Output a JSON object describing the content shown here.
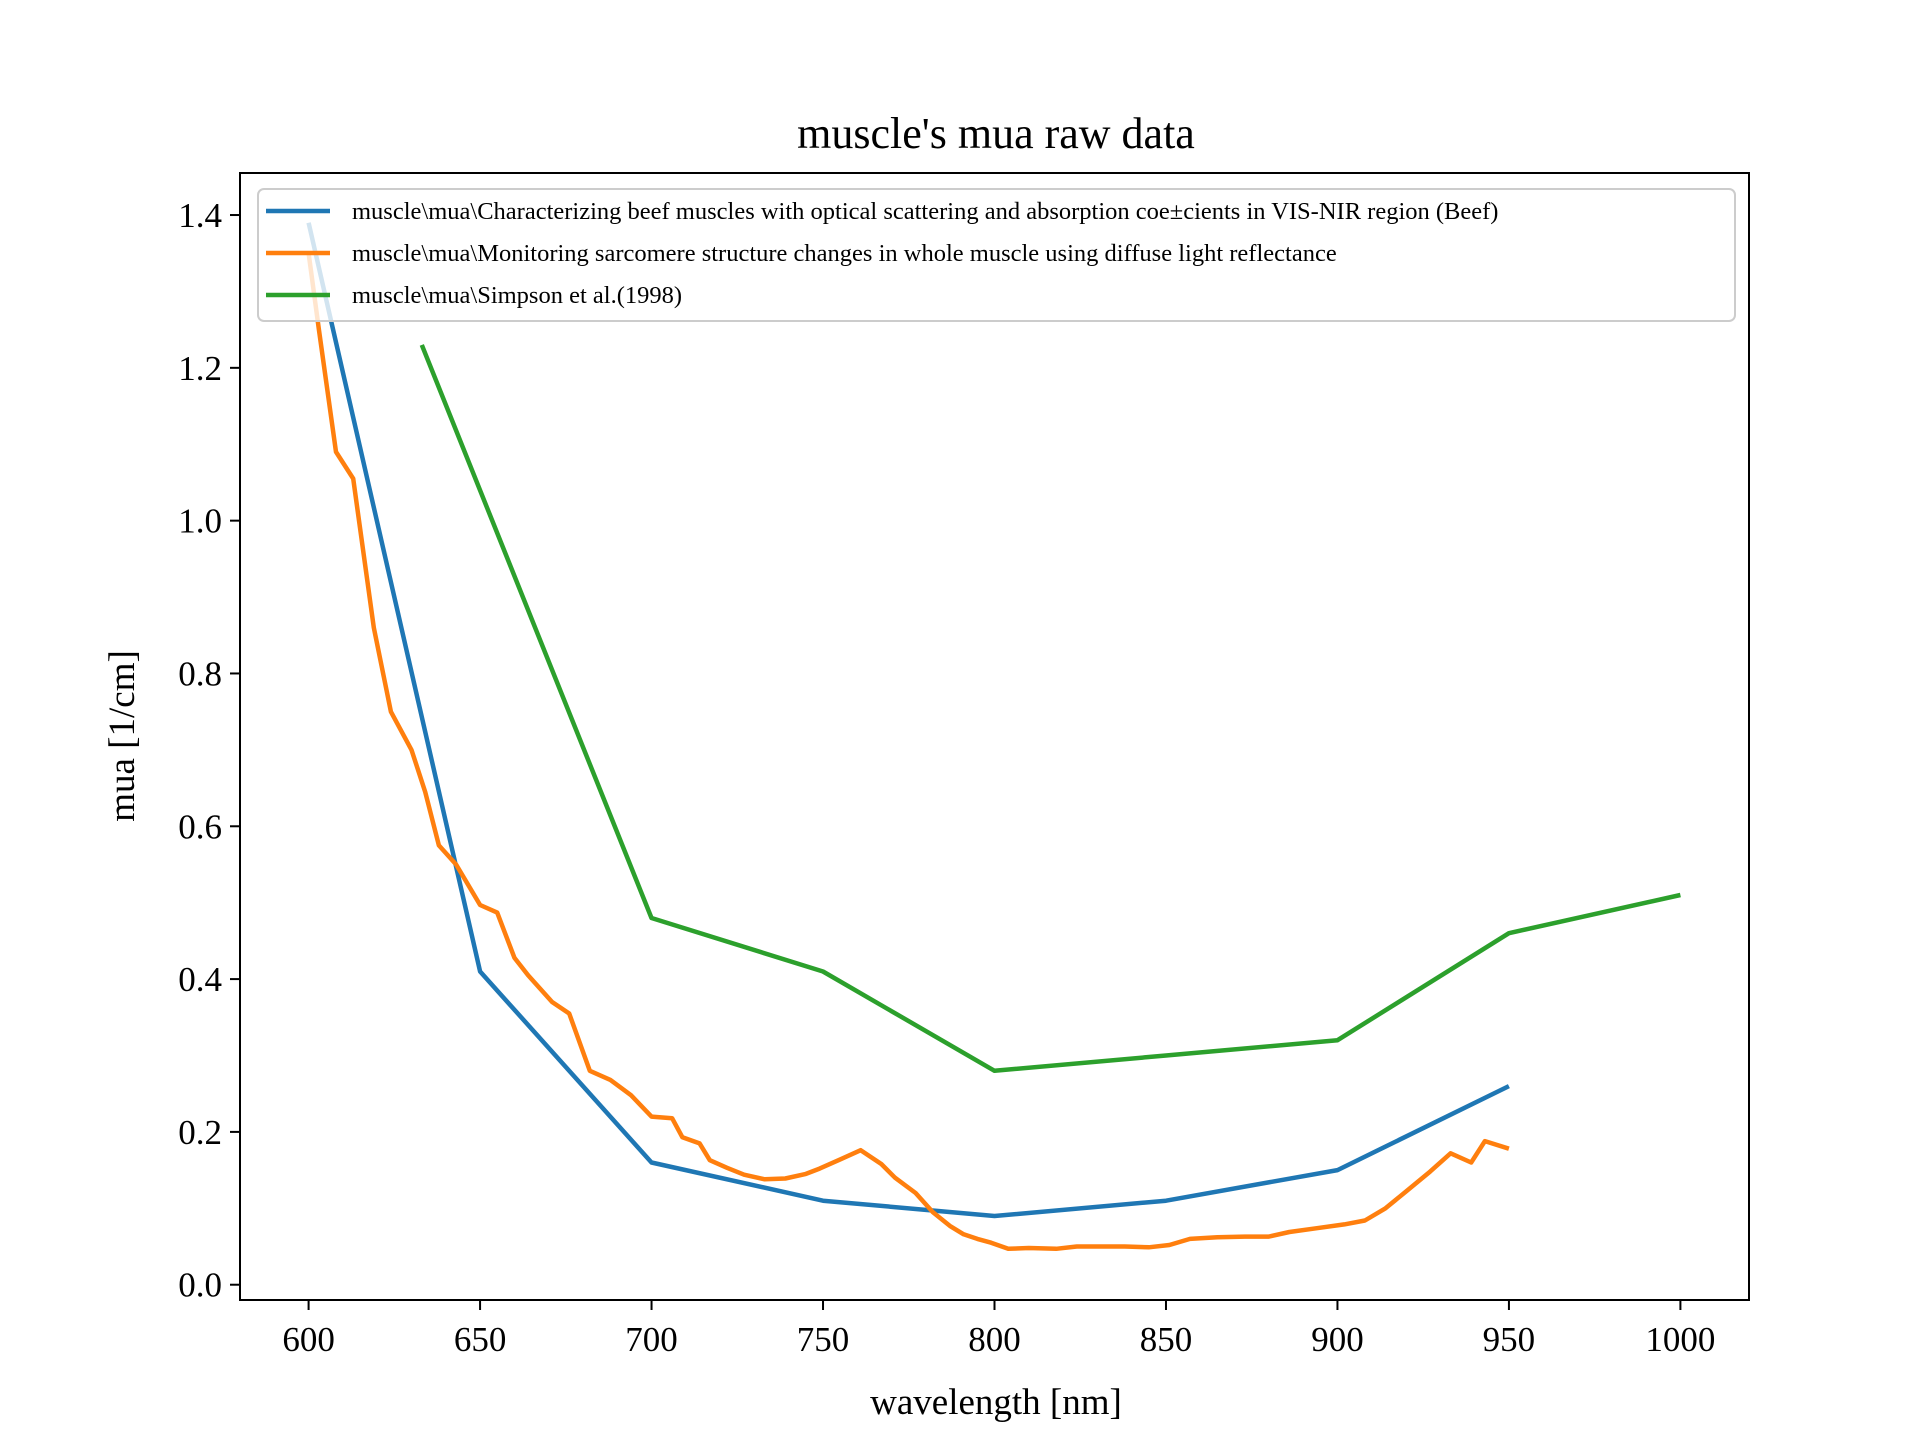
{
  "chart_data": {
    "type": "line",
    "title": "muscle's mua raw data",
    "xlabel": "wavelength [nm]",
    "ylabel": "mua [1/cm]",
    "xlim": [
      580,
      1020
    ],
    "ylim": [
      -0.02,
      1.455
    ],
    "xticks": [
      600,
      650,
      700,
      750,
      800,
      850,
      900,
      950,
      1000
    ],
    "xtick_labels": [
      "600",
      "650",
      "700",
      "750",
      "800",
      "850",
      "900",
      "950",
      "1000"
    ],
    "yticks": [
      0.0,
      0.2,
      0.4,
      0.6,
      0.8,
      1.0,
      1.2,
      1.4
    ],
    "ytick_labels": [
      "0.0",
      "0.2",
      "0.4",
      "0.6",
      "0.8",
      "1.0",
      "1.2",
      "1.4"
    ],
    "grid": false,
    "legend_position": "top",
    "series": [
      {
        "name": "muscle\\mua\\Characterizing beef muscles with optical scattering and absorption coe±cients in VIS-NIR region (Beef)",
        "color": "#1f77b4",
        "x": [
          600,
          650,
          700,
          750,
          800,
          850,
          900,
          950
        ],
        "y": [
          1.39,
          0.41,
          0.16,
          0.11,
          0.09,
          0.11,
          0.15,
          0.26
        ]
      },
      {
        "name": "muscle\\mua\\Monitoring sarcomere structure changes in whole muscle using diffuse light reflectance",
        "color": "#ff7f0e",
        "x": [
          600,
          603,
          608,
          613,
          619,
          624,
          630,
          634,
          638,
          643,
          650,
          655,
          660,
          664,
          671,
          676,
          682,
          688,
          694,
          700,
          706,
          709,
          714,
          717,
          722,
          727,
          733,
          739,
          745,
          749,
          755,
          761,
          767,
          771,
          777,
          782,
          787,
          791,
          795,
          799,
          804,
          810,
          818,
          824,
          830,
          838,
          845,
          851,
          857,
          865,
          873,
          880,
          886,
          894,
          902,
          908,
          914,
          920,
          927,
          933,
          939,
          943,
          950
        ],
        "y": [
          1.35,
          1.25,
          1.09,
          1.055,
          0.86,
          0.75,
          0.7,
          0.645,
          0.575,
          0.55,
          0.497,
          0.487,
          0.428,
          0.405,
          0.37,
          0.355,
          0.28,
          0.268,
          0.248,
          0.22,
          0.218,
          0.193,
          0.185,
          0.163,
          0.153,
          0.144,
          0.138,
          0.139,
          0.145,
          0.152,
          0.164,
          0.176,
          0.158,
          0.14,
          0.12,
          0.095,
          0.077,
          0.066,
          0.06,
          0.055,
          0.047,
          0.048,
          0.047,
          0.05,
          0.05,
          0.05,
          0.049,
          0.052,
          0.06,
          0.062,
          0.063,
          0.063,
          0.069,
          0.074,
          0.079,
          0.084,
          0.1,
          0.122,
          0.148,
          0.172,
          0.16,
          0.188,
          0.178
        ]
      },
      {
        "name": "muscle\\mua\\Simpson et al.(1998)",
        "color": "#2ca02c",
        "x": [
          633,
          700,
          750,
          800,
          850,
          900,
          950,
          1000
        ],
        "y": [
          1.23,
          0.48,
          0.41,
          0.28,
          0.3,
          0.32,
          0.46,
          0.51
        ]
      }
    ]
  }
}
